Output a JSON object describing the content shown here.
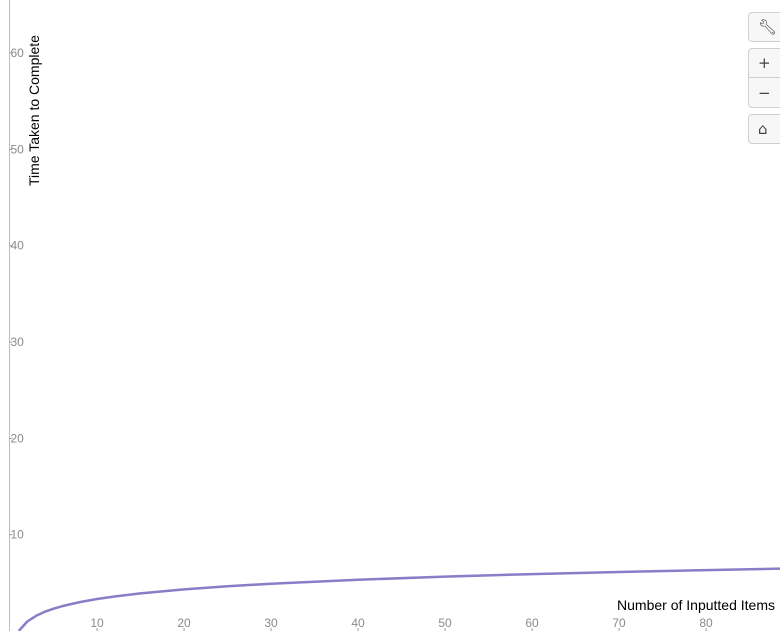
{
  "chart_data": {
    "type": "line",
    "title": "",
    "xlabel": "Number of Inputted Items",
    "ylabel": "Time Taken to Complete",
    "xlim": [
      -1.5,
      88.5
    ],
    "ylim": [
      0,
      65.5
    ],
    "x_ticks": [
      10,
      20,
      30,
      40,
      50,
      60,
      70,
      80
    ],
    "y_ticks": [
      10,
      20,
      30,
      40,
      50,
      60
    ],
    "grid": false,
    "series": [
      {
        "color": "#8b7cc8",
        "x": [
          1,
          2,
          3,
          4,
          5,
          6,
          8,
          10,
          12,
          15,
          20,
          25,
          30,
          40,
          50,
          60,
          70,
          80,
          88.5
        ],
        "y": [
          0.0,
          1.0,
          1.58,
          2.0,
          2.32,
          2.58,
          3.0,
          3.32,
          3.58,
          3.91,
          4.32,
          4.64,
          4.91,
          5.32,
          5.64,
          5.91,
          6.13,
          6.32,
          6.47
        ]
      }
    ]
  },
  "toolbar": {
    "settings_icon": "wrench-icon",
    "zoom_in_icon": "plus-icon",
    "zoom_out_icon": "minus-icon",
    "home_icon": "home-icon"
  }
}
